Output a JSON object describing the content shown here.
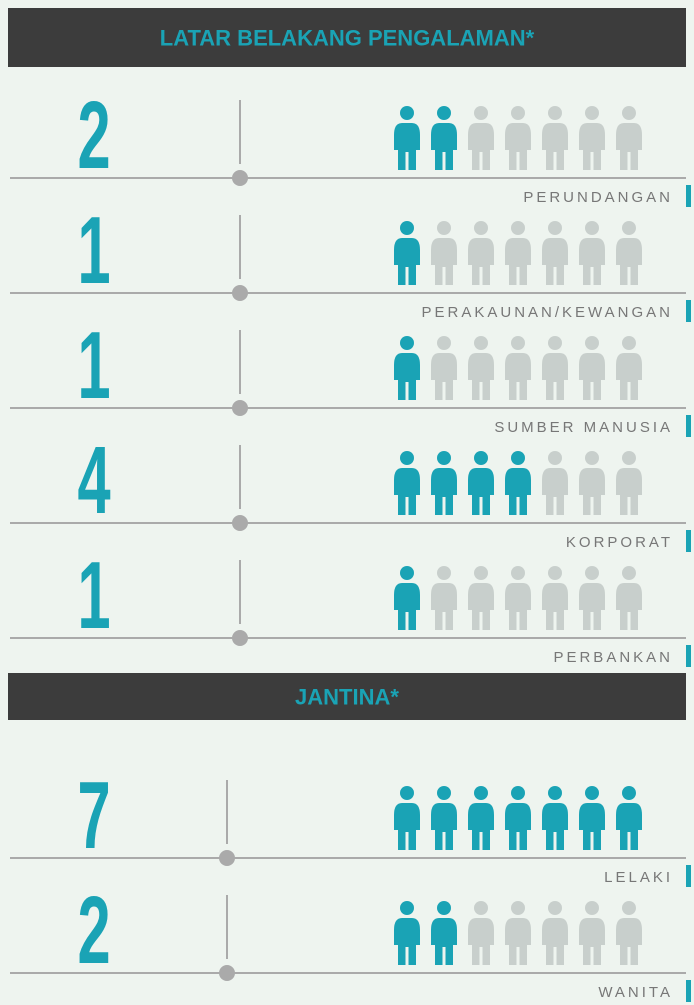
{
  "sections": [
    {
      "title": "LATAR BELAKANG PENGALAMAN*",
      "rows": [
        {
          "value": 2,
          "label": "PERUNDANGAN"
        },
        {
          "value": 1,
          "label": "PERAKAUNAN/KEWANGAN"
        },
        {
          "value": 1,
          "label": "SUMBER MANUSIA"
        },
        {
          "value": 4,
          "label": "KORPORAT"
        },
        {
          "value": 1,
          "label": "PERBANKAN"
        }
      ]
    },
    {
      "title": "JANTINA*",
      "rows": [
        {
          "value": 7,
          "label": "LELAKI"
        },
        {
          "value": 2,
          "label": "WANITA"
        }
      ]
    }
  ]
}
